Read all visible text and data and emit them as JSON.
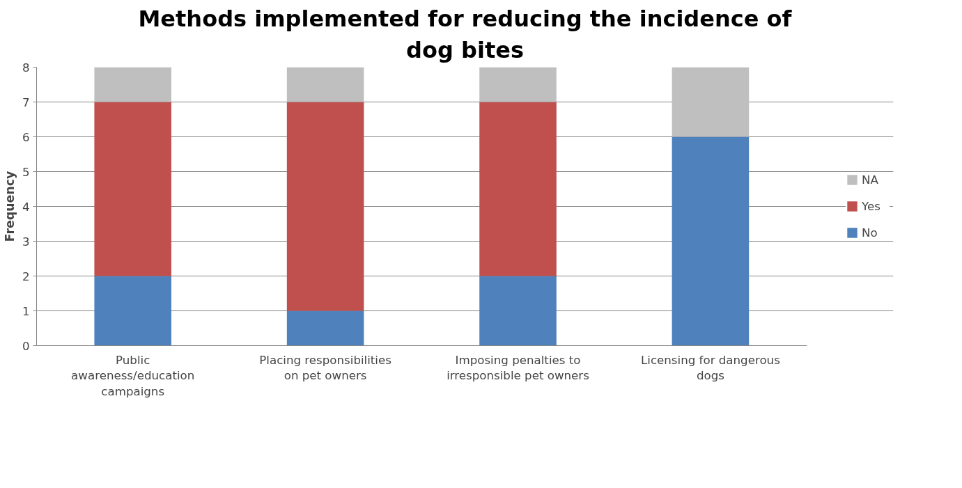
{
  "chart_data": {
    "type": "bar",
    "title": "Methods implemented for reducing the incidence of dog bites",
    "ylabel": "Frequency",
    "categories": [
      "Public awareness/education campaigns",
      "Placing responsibilities on pet owners",
      "Imposing penalties to irresponsible pet owners",
      "Licensing for dangerous dogs"
    ],
    "stacked": true,
    "series": [
      {
        "name": "No",
        "color": "#4f81bd",
        "values": [
          2,
          1,
          2,
          6
        ]
      },
      {
        "name": "Yes",
        "color": "#c0504d",
        "values": [
          5,
          6,
          5,
          0
        ]
      },
      {
        "name": "NA",
        "color": "#bfbfbf",
        "values": [
          1,
          1,
          1,
          2
        ]
      }
    ],
    "ylim": [
      0,
      8
    ],
    "yticks": [
      0,
      1,
      2,
      3,
      4,
      5,
      6,
      7,
      8
    ],
    "grid": "y",
    "legend": "right"
  }
}
